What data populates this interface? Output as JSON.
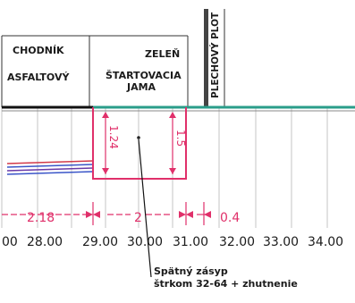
{
  "labels": {
    "chodnik": "CHODNÍK",
    "asfaltovy": "ASFALTOVÝ",
    "zelen": "ZELEŇ",
    "startovacia_1": "ŠTARTOVACIA",
    "startovacia_2": "JAMA",
    "plechovy_plot": "PLECHOVÝ PLOT"
  },
  "depth_dims": {
    "left": "1.24",
    "right": "1.5"
  },
  "width_dims": [
    "2.18",
    "2",
    "0.4"
  ],
  "stations": [
    "00",
    "28.00",
    "29.00",
    "30.00",
    "31.00",
    "32.00",
    "33.00",
    "34.00"
  ],
  "callout": {
    "line1": "Spätný zásyp",
    "line2": "štrkom 32-64 + zhutnenie"
  },
  "colors": {
    "surface": "#2a9d8a",
    "asphalt": "#111111",
    "pit": "#e0306a",
    "pipes": [
      "#d23a4a",
      "#3a55c8",
      "#6a3aa8"
    ],
    "grid": "#b9b9b9"
  }
}
